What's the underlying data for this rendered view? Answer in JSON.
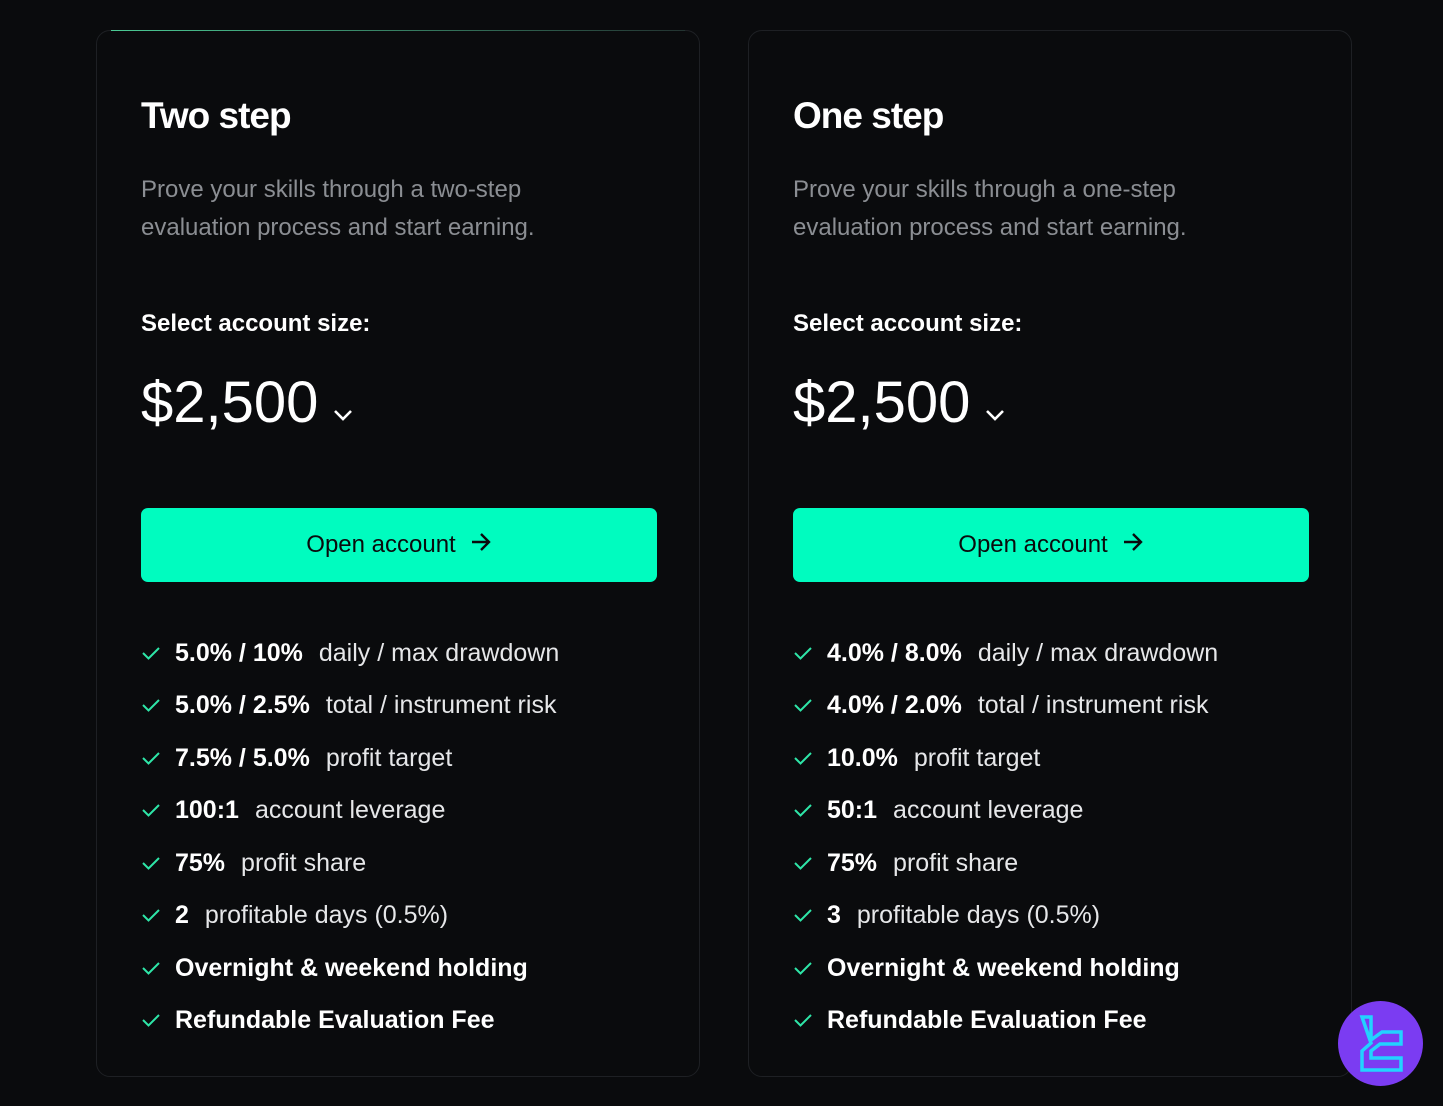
{
  "plans": [
    {
      "title": "Two step",
      "description": "Prove your skills through a two-step evaluation process and start earning.",
      "select_label": "Select account size:",
      "account_size": "$2,500",
      "button_label": "Open account",
      "features": [
        {
          "value": "5.0% / 10%",
          "text": "daily / max drawdown"
        },
        {
          "value": "5.0% / 2.5%",
          "text": "total / instrument risk"
        },
        {
          "value": "7.5% / 5.0%",
          "text": "profit target"
        },
        {
          "value": "100:1",
          "text": "account leverage"
        },
        {
          "value": "75%",
          "text": "profit share"
        },
        {
          "value": "2",
          "text": "profitable days (0.5%)"
        },
        {
          "value": "Overnight & weekend holding",
          "text": ""
        },
        {
          "value": "Refundable Evaluation Fee",
          "text": ""
        }
      ]
    },
    {
      "title": "One step",
      "description": "Prove your skills through a one-step evaluation process and start earning.",
      "select_label": "Select account size:",
      "account_size": "$2,500",
      "button_label": "Open account",
      "features": [
        {
          "value": "4.0% / 8.0%",
          "text": "daily / max drawdown"
        },
        {
          "value": "4.0% / 2.0%",
          "text": "total / instrument risk"
        },
        {
          "value": "10.0%",
          "text": "profit target"
        },
        {
          "value": "50:1",
          "text": "account leverage"
        },
        {
          "value": "75%",
          "text": "profit share"
        },
        {
          "value": "3",
          "text": "profitable days (0.5%)"
        },
        {
          "value": "Overnight & weekend holding",
          "text": ""
        },
        {
          "value": "Refundable Evaluation Fee",
          "text": ""
        }
      ]
    }
  ],
  "colors": {
    "accent": "#00fcbf",
    "check": "#2ee6a8",
    "background": "#0a0b0d",
    "logo_bg": "#7b3cf2",
    "logo_fg": "#22d3ff"
  },
  "icons": {
    "check": "check-icon",
    "chevron": "chevron-down-icon",
    "arrow": "arrow-right-icon",
    "logo": "brand-logo"
  }
}
